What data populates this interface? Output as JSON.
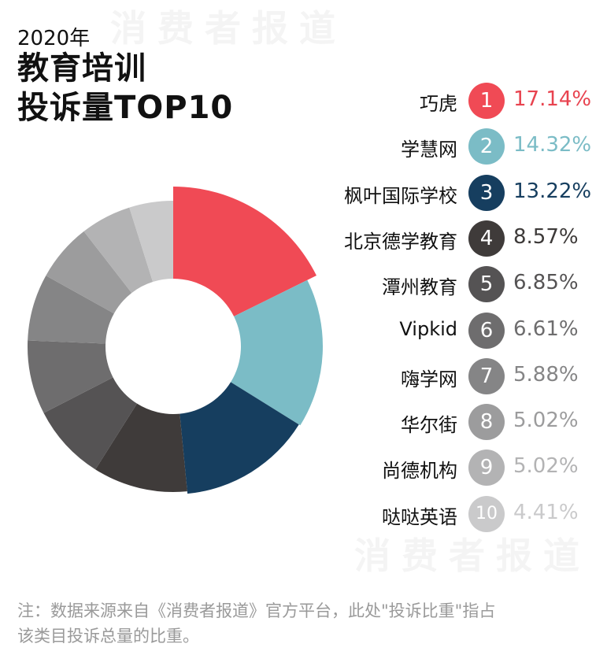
{
  "header": {
    "year": "2020年",
    "title_line1": "教育培训",
    "title_line2": "投诉量TOP10"
  },
  "chart_data": {
    "type": "pie",
    "title": "2020年 教育培训 投诉量TOP10",
    "donut": true,
    "unit": "%",
    "categories": [
      "巧虎",
      "学慧网",
      "枫叶国际学校",
      "北京德学教育",
      "潭州教育",
      "Vipkid",
      "嗨学网",
      "华尔街",
      "尚德机构",
      "哒哒英语"
    ],
    "values": [
      17.14,
      14.32,
      13.22,
      8.57,
      6.85,
      6.61,
      5.88,
      5.02,
      5.02,
      4.41
    ],
    "labels": [
      "17.14%",
      "14.32%",
      "13.22%",
      "8.57%",
      "6.85%",
      "6.61%",
      "5.88%",
      "5.02%",
      "5.02%",
      "4.41%"
    ],
    "ranks": [
      "1",
      "2",
      "3",
      "4",
      "5",
      "6",
      "7",
      "8",
      "9",
      "10"
    ],
    "colors": [
      "#f04a55",
      "#7bbcc6",
      "#163e5f",
      "#3f3b3a",
      "#555354",
      "#6e6d6e",
      "#858586",
      "#9c9c9d",
      "#b3b3b4",
      "#cacacb"
    ],
    "pct_colors": [
      "#e8434f",
      "#7bbcc6",
      "#163e5f",
      "#3d3a39",
      "#555354",
      "#6e6d6e",
      "#858586",
      "#9c9c9d",
      "#b3b3b4",
      "#cacacb"
    ],
    "legend_position": "right"
  },
  "note": {
    "line1": "注：数据来源来自《消费者报道》官方平台，此处\"投诉比重\"指占",
    "line2": "该类目投诉总量的比重。"
  },
  "watermark": {
    "top": "消费者报道",
    "bottom": "消费者报道"
  }
}
